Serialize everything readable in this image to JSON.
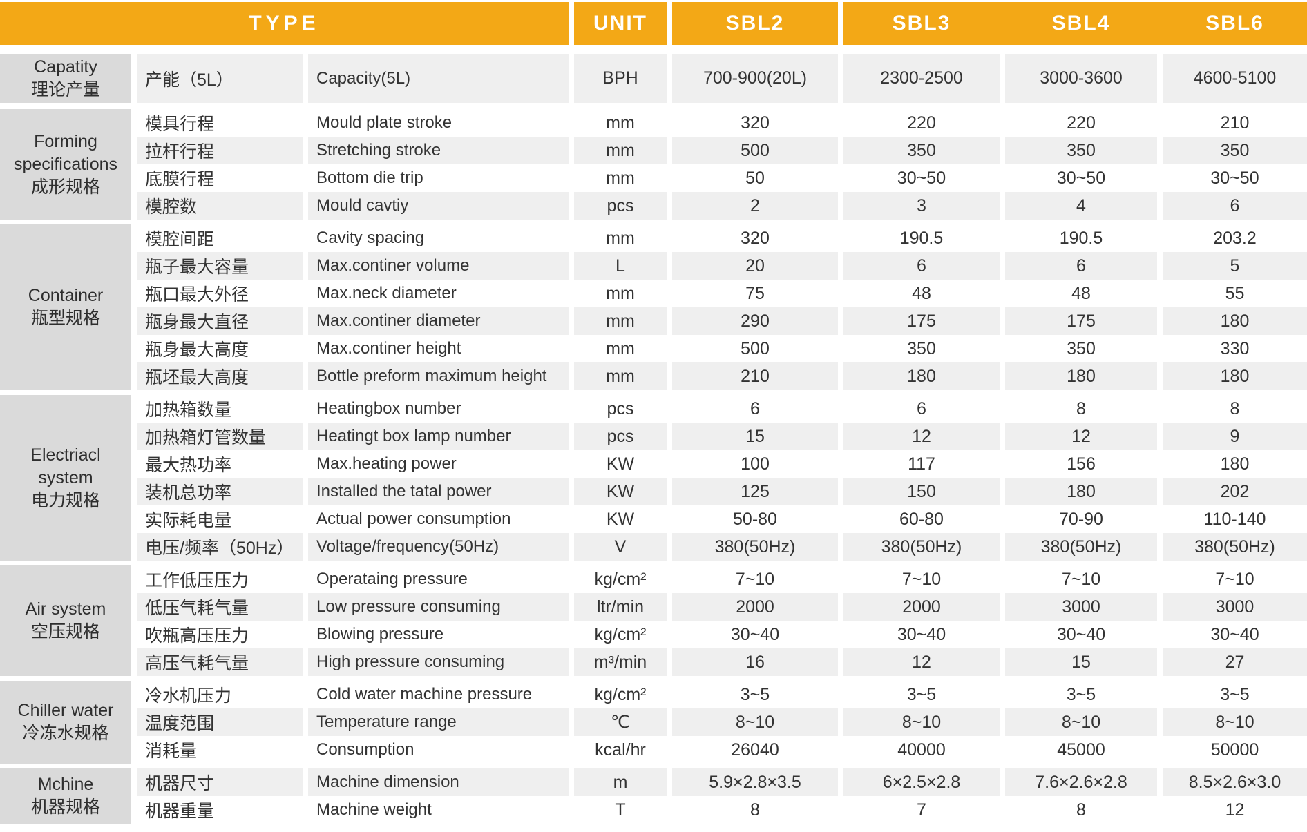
{
  "colors": {
    "orange": "#F3A816",
    "row_gray": "#EFEFEF",
    "row_white": "#FFFFFF",
    "group_gray": "#DADADA",
    "text": "#333333",
    "header_text": "#FFFFFF"
  },
  "header": {
    "type_label": "TYPE",
    "unit_label": "UNIT",
    "models": [
      "SBL2",
      "SBL3",
      "SBL4",
      "SBL6"
    ]
  },
  "groups": [
    {
      "name_lines": [
        "Capatity",
        "理论产量"
      ],
      "rows": [
        {
          "cn": "产能（5L）",
          "en": "Capacity(5L)",
          "unit": "BPH",
          "values": [
            "700-900(20L)",
            "2300-2500",
            "3000-3600",
            "4600-5100"
          ]
        }
      ]
    },
    {
      "name_lines": [
        "Forming",
        "specifications",
        "成形规格"
      ],
      "rows": [
        {
          "cn": "模具行程",
          "en": "Mould plate stroke",
          "unit": "mm",
          "values": [
            "320",
            "220",
            "220",
            "210"
          ]
        },
        {
          "cn": "拉杆行程",
          "en": "Stretching stroke",
          "unit": "mm",
          "values": [
            "500",
            "350",
            "350",
            "350"
          ]
        },
        {
          "cn": "底膜行程",
          "en": "Bottom die trip",
          "unit": "mm",
          "values": [
            "50",
            "30~50",
            "30~50",
            "30~50"
          ]
        },
        {
          "cn": "模腔数",
          "en": "Mould cavtiy",
          "unit": "pcs",
          "values": [
            "2",
            "3",
            "4",
            "6"
          ]
        }
      ]
    },
    {
      "name_lines": [
        "Container",
        "瓶型规格"
      ],
      "rows": [
        {
          "cn": "模腔间距",
          "en": "Cavity spacing",
          "unit": "mm",
          "values": [
            "320",
            "190.5",
            "190.5",
            "203.2"
          ]
        },
        {
          "cn": "瓶子最大容量",
          "en": "Max.continer volume",
          "unit": "L",
          "values": [
            "20",
            "6",
            "6",
            "5"
          ]
        },
        {
          "cn": "瓶口最大外径",
          "en": "Max.neck diameter",
          "unit": "mm",
          "values": [
            "75",
            "48",
            "48",
            "55"
          ]
        },
        {
          "cn": "瓶身最大直径",
          "en": "Max.continer diameter",
          "unit": "mm",
          "values": [
            "290",
            "175",
            "175",
            "180"
          ]
        },
        {
          "cn": "瓶身最大高度",
          "en": "Max.continer height",
          "unit": "mm",
          "values": [
            "500",
            "350",
            "350",
            "330"
          ]
        },
        {
          "cn": "瓶坯最大高度",
          "en": "Bottle preform maximum height",
          "unit": "mm",
          "values": [
            "210",
            "180",
            "180",
            "180"
          ]
        }
      ]
    },
    {
      "name_lines": [
        "Electriacl",
        "system",
        "电力规格"
      ],
      "rows": [
        {
          "cn": "加热箱数量",
          "en": "Heatingbox number",
          "unit": "pcs",
          "values": [
            "6",
            "6",
            "8",
            "8"
          ]
        },
        {
          "cn": "加热箱灯管数量",
          "en": "Heatingt box lamp number",
          "unit": "pcs",
          "values": [
            "15",
            "12",
            "12",
            "9"
          ]
        },
        {
          "cn": "最大热功率",
          "en": "Max.heating power",
          "unit": "KW",
          "values": [
            "100",
            "117",
            "156",
            "180"
          ]
        },
        {
          "cn": "装机总功率",
          "en": "Installed the tatal power",
          "unit": "KW",
          "values": [
            "125",
            "150",
            "180",
            "202"
          ]
        },
        {
          "cn": "实际耗电量",
          "en": "Actual power consumption",
          "unit": "KW",
          "values": [
            "50-80",
            "60-80",
            "70-90",
            "110-140"
          ]
        },
        {
          "cn": "电压/频率（50Hz）",
          "en": "Voltage/frequency(50Hz)",
          "unit": "V",
          "values": [
            "380(50Hz)",
            "380(50Hz)",
            "380(50Hz)",
            "380(50Hz)"
          ]
        }
      ]
    },
    {
      "name_lines": [
        "Air system",
        "空压规格"
      ],
      "rows": [
        {
          "cn": "工作低压压力",
          "en": "Operataing pressure",
          "unit": "kg/cm²",
          "values": [
            "7~10",
            "7~10",
            "7~10",
            "7~10"
          ]
        },
        {
          "cn": "低压气耗气量",
          "en": "Low pressure consuming",
          "unit": "ltr/min",
          "values": [
            "2000",
            "2000",
            "3000",
            "3000"
          ]
        },
        {
          "cn": "吹瓶高压压力",
          "en": "Blowing pressure",
          "unit": "kg/cm²",
          "values": [
            "30~40",
            "30~40",
            "30~40",
            "30~40"
          ]
        },
        {
          "cn": "高压气耗气量",
          "en": "High pressure consuming",
          "unit": "m³/min",
          "values": [
            "16",
            "12",
            "15",
            "27"
          ]
        }
      ]
    },
    {
      "name_lines": [
        "Chiller water",
        "冷冻水规格"
      ],
      "rows": [
        {
          "cn": "冷水机压力",
          "en": "Cold water machine pressure",
          "unit": "kg/cm²",
          "values": [
            "3~5",
            "3~5",
            "3~5",
            "3~5"
          ]
        },
        {
          "cn": "温度范围",
          "en": "Temperature range",
          "unit": "℃",
          "values": [
            "8~10",
            "8~10",
            "8~10",
            "8~10"
          ]
        },
        {
          "cn": "消耗量",
          "en": "Consumption",
          "unit": "kcal/hr",
          "values": [
            "26040",
            "40000",
            "45000",
            "50000"
          ]
        }
      ]
    },
    {
      "name_lines": [
        "Mchine",
        "机器规格"
      ],
      "rows": [
        {
          "cn": "机器尺寸",
          "en": "Machine dimension",
          "unit": "m",
          "values": [
            "5.9×2.8×3.5",
            "6×2.5×2.8",
            "7.6×2.6×2.8",
            "8.5×2.6×3.0"
          ]
        },
        {
          "cn": "机器重量",
          "en": "Machine weight",
          "unit": "T",
          "values": [
            "8",
            "7",
            "8",
            "12"
          ]
        }
      ]
    }
  ]
}
